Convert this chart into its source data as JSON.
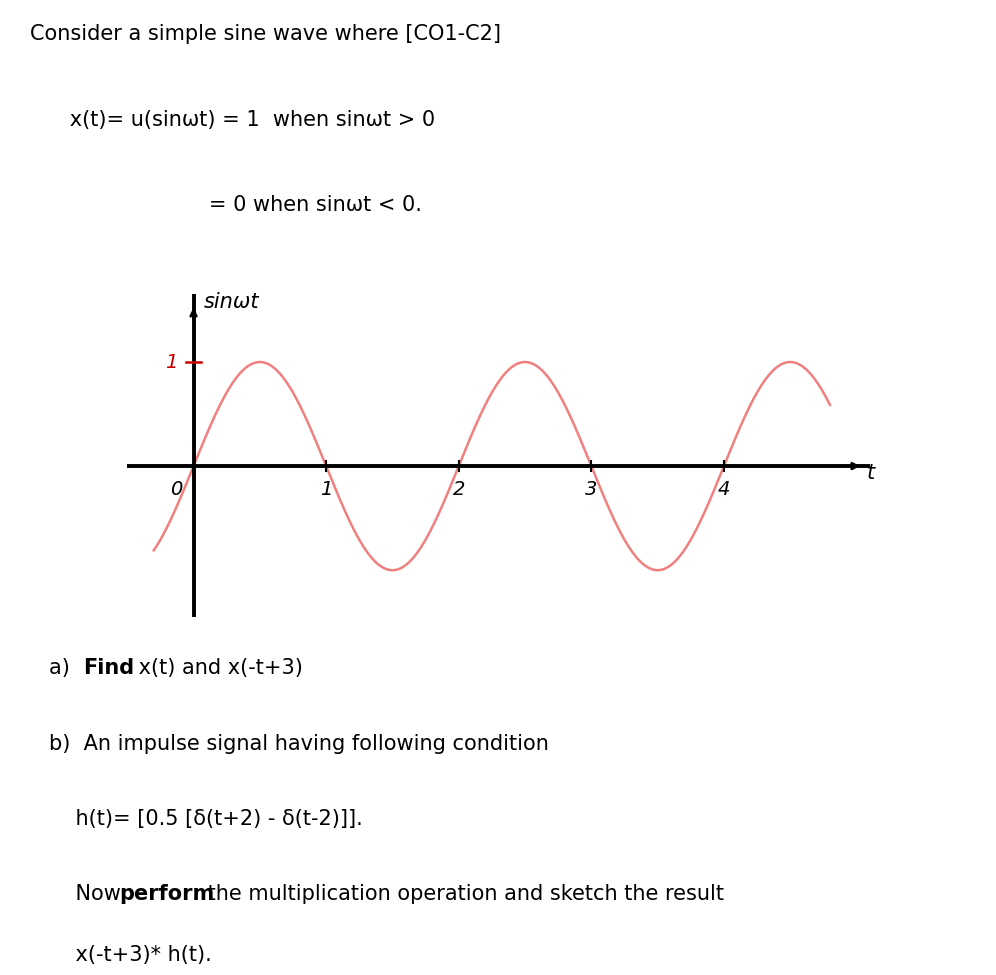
{
  "title_line1": "Consider a simple sine wave where [CO1-C2]",
  "title_line2": "      x(t)= u(sinωt) = 1  when sinωt > 0",
  "title_line3": "                           = 0 when sinωt < 0.",
  "ylabel_handwritten": "sinωt",
  "xlabel_handwritten": "t",
  "tick_labels": [
    "0",
    "1",
    "2",
    "3",
    "4"
  ],
  "tick_label_1": "1",
  "sine_color": "#f08080",
  "axes_color": "#000000",
  "red_color": "#cc0000",
  "text_color": "#000000",
  "bg_color": "#ffffff",
  "part_a_label": "a) ",
  "part_a_bold": "Find",
  "part_a_rest": " x(t) and x(-t+3)",
  "part_b_text": "b)  An impulse signal having following condition",
  "ht_text": "    h(t)= [0.5 [δ(t+2) - δ(t-2)]].",
  "now_text_pre": "    Now ",
  "now_bold": "perform",
  "now_text_post": " the multiplication operation and sketch the result",
  "result_text": "    x(-t+3)* h(t).",
  "font_size_title": 15,
  "font_size_body": 15,
  "font_size_axis_label": 15,
  "font_size_tick": 14
}
